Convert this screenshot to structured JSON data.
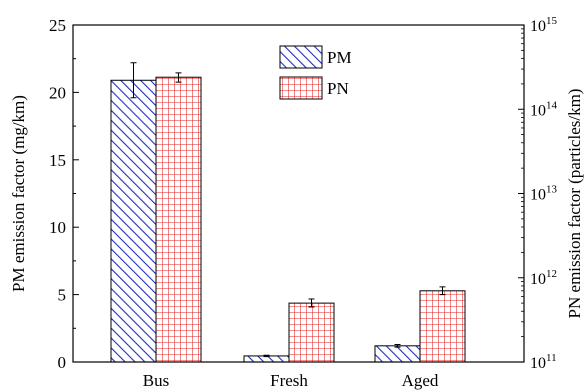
{
  "chart_data": {
    "type": "bar",
    "categories": [
      "Bus",
      "Fresh",
      "Aged"
    ],
    "ylabel": "PM emission factor (mg/km)",
    "y2label": "PN emission factor (particles/km)",
    "ylim": [
      0,
      25
    ],
    "yticks": [
      "0",
      "5",
      "10",
      "15",
      "20",
      "25"
    ],
    "y2lim": [
      100000000000,
      1000000000000000
    ],
    "y2scale": "log",
    "y2ticks": [
      {
        "base": "10",
        "exp": "11"
      },
      {
        "base": "10",
        "exp": "12"
      },
      {
        "base": "10",
        "exp": "13"
      },
      {
        "base": "10",
        "exp": "14"
      },
      {
        "base": "10",
        "exp": "15"
      }
    ],
    "legend_position": "top-center",
    "series": [
      {
        "name": "PM",
        "axis": "left",
        "values": [
          20.9,
          0.45,
          1.2
        ],
        "errors": [
          1.3,
          0.05,
          0.1
        ],
        "color": "#1f2fbf",
        "pattern": "diagonal-hatch"
      },
      {
        "name": "PN",
        "axis": "right",
        "values": [
          240000000000000,
          500000000000,
          700000000000
        ],
        "errors_low": [
          210000000000000,
          450000000000,
          630000000000
        ],
        "errors_high": [
          270000000000000,
          560000000000,
          780000000000
        ],
        "color": "#e02020",
        "pattern": "grid-hatch"
      }
    ]
  }
}
